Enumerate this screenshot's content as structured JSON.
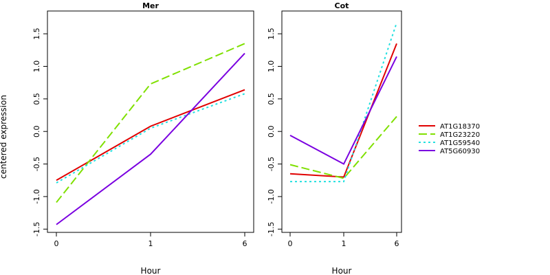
{
  "chart_data": {
    "type": "line",
    "ylabel": "centered expression",
    "xlabel": "Hour",
    "x_tick_labels": [
      "0",
      "1",
      "6"
    ],
    "yticks": [
      -1.5,
      -1.0,
      -0.5,
      0.0,
      0.5,
      1.0,
      1.5
    ],
    "y_tick_labels": [
      "-1.5",
      "-1.0",
      "-0.5",
      "0.0",
      "0.5",
      "1.0",
      "1.5"
    ],
    "ylim": [
      -1.55,
      1.85
    ],
    "grid": false,
    "legend_position": "right",
    "series_styles": [
      {
        "color": "#e00000",
        "dash": "solid"
      },
      {
        "color": "#7fe000",
        "dash": "long-dash"
      },
      {
        "color": "#22e0e0",
        "dash": "dotted"
      },
      {
        "color": "#7a00e0",
        "dash": "solid"
      }
    ],
    "panels": [
      {
        "title": "Mer",
        "series": [
          {
            "name": "AT1G18370",
            "values": [
              -0.75,
              0.08,
              0.64
            ]
          },
          {
            "name": "AT1G23220",
            "values": [
              -1.09,
              0.73,
              1.35
            ]
          },
          {
            "name": "AT1G59540",
            "values": [
              -0.79,
              0.05,
              0.58
            ]
          },
          {
            "name": "AT5G60930",
            "values": [
              -1.43,
              -0.35,
              1.2
            ]
          }
        ]
      },
      {
        "title": "Cot",
        "series": [
          {
            "name": "AT1G18370",
            "values": [
              -0.65,
              -0.7,
              1.35
            ]
          },
          {
            "name": "AT1G23220",
            "values": [
              -0.51,
              -0.72,
              0.23
            ]
          },
          {
            "name": "AT1G59540",
            "values": [
              -0.77,
              -0.77,
              1.67
            ]
          },
          {
            "name": "AT5G60930",
            "values": [
              -0.06,
              -0.5,
              1.15
            ]
          }
        ]
      }
    ]
  }
}
